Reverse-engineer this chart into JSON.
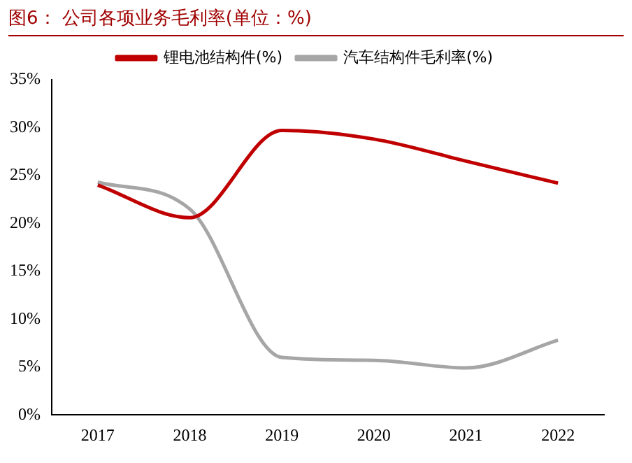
{
  "chart_data": {
    "type": "line",
    "title": "图6：  公司各项业务毛利率(单位：%)",
    "categories": [
      "2017",
      "2018",
      "2019",
      "2020",
      "2021",
      "2022"
    ],
    "series": [
      {
        "name": "锂电池结构件(%)",
        "color": "#c00000",
        "values": [
          24.0,
          20.6,
          29.7,
          28.8,
          26.5,
          24.2
        ]
      },
      {
        "name": "汽车结构件毛利率(%)",
        "color": "#a6a6a6",
        "values": [
          24.3,
          21.5,
          6.0,
          5.7,
          4.9,
          7.8
        ]
      }
    ],
    "ylim": [
      0,
      35
    ],
    "yticks": [
      {
        "value": 0,
        "label": "0%"
      },
      {
        "value": 5,
        "label": "5%"
      },
      {
        "value": 10,
        "label": "10%"
      },
      {
        "value": 15,
        "label": "15%"
      },
      {
        "value": 20,
        "label": "20%"
      },
      {
        "value": 25,
        "label": "25%"
      },
      {
        "value": 30,
        "label": "30%"
      },
      {
        "value": 35,
        "label": "35%"
      }
    ],
    "grid": false,
    "legend": "top",
    "marker": "none",
    "line_style": "solid"
  }
}
